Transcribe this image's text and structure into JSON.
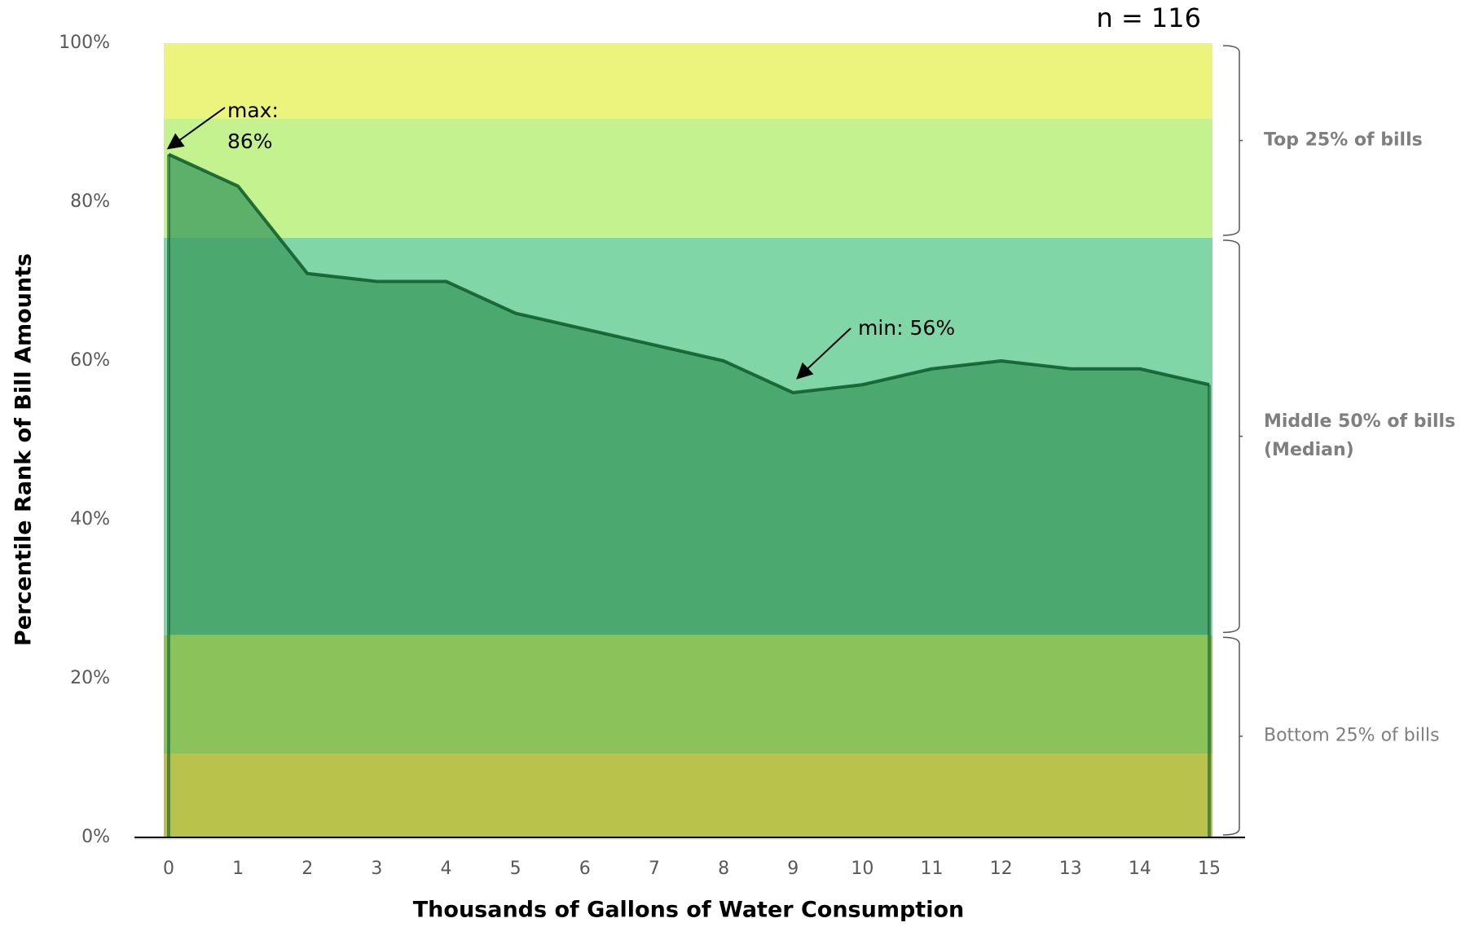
{
  "chart_data": {
    "type": "area",
    "x_label": "Thousands of Gallons of Water Consumption",
    "y_label": "Percentile Rank of Bill Amounts",
    "x": [
      0,
      1,
      2,
      3,
      4,
      5,
      6,
      7,
      8,
      9,
      10,
      11,
      12,
      13,
      14,
      15
    ],
    "series": [
      {
        "color": "#0d5a2a",
        "fill": "#3a9a5c",
        "values": [
          86,
          82,
          71,
          70,
          70,
          66,
          64,
          62,
          60,
          56,
          57,
          59,
          60,
          59,
          59,
          57
        ]
      }
    ],
    "xlim": [
      0,
      15
    ],
    "xticks": [
      0,
      1,
      2,
      3,
      4,
      5,
      6,
      7,
      8,
      9,
      10,
      11,
      12,
      13,
      14,
      15
    ],
    "ylim": [
      0,
      100
    ],
    "yticks": [
      {
        "value": 0,
        "label": "0%"
      },
      {
        "value": 20,
        "label": "20%"
      },
      {
        "value": 40,
        "label": "40%"
      },
      {
        "value": 60,
        "label": "60%"
      },
      {
        "value": 80,
        "label": "80%"
      },
      {
        "value": 100,
        "label": "100%"
      }
    ],
    "bands": [
      {
        "from": 0,
        "to": 10.5,
        "color": "#b9c24b"
      },
      {
        "from": 10.5,
        "to": 25.5,
        "color": "#8cc25a"
      },
      {
        "from": 25.5,
        "to": 75.5,
        "color": "#80d6a6"
      },
      {
        "from": 75.5,
        "to": 90.5,
        "color": "#c4f28f"
      },
      {
        "from": 90.5,
        "to": 100,
        "color": "#ecf47d"
      }
    ],
    "brackets": [
      {
        "range": [
          75.5,
          100
        ],
        "label": [
          "Top 25% of bills"
        ],
        "bold": true
      },
      {
        "range": [
          25.5,
          75.5
        ],
        "label": [
          "Middle 50% of bills",
          "(Median)"
        ],
        "bold": true
      },
      {
        "range": [
          0,
          25.5
        ],
        "label": [
          "Bottom 25% of bills"
        ],
        "bold": false
      }
    ],
    "annotations": {
      "max": [
        "max:",
        "86%"
      ],
      "min": [
        "min: 56%"
      ],
      "n": "n = 116"
    }
  }
}
